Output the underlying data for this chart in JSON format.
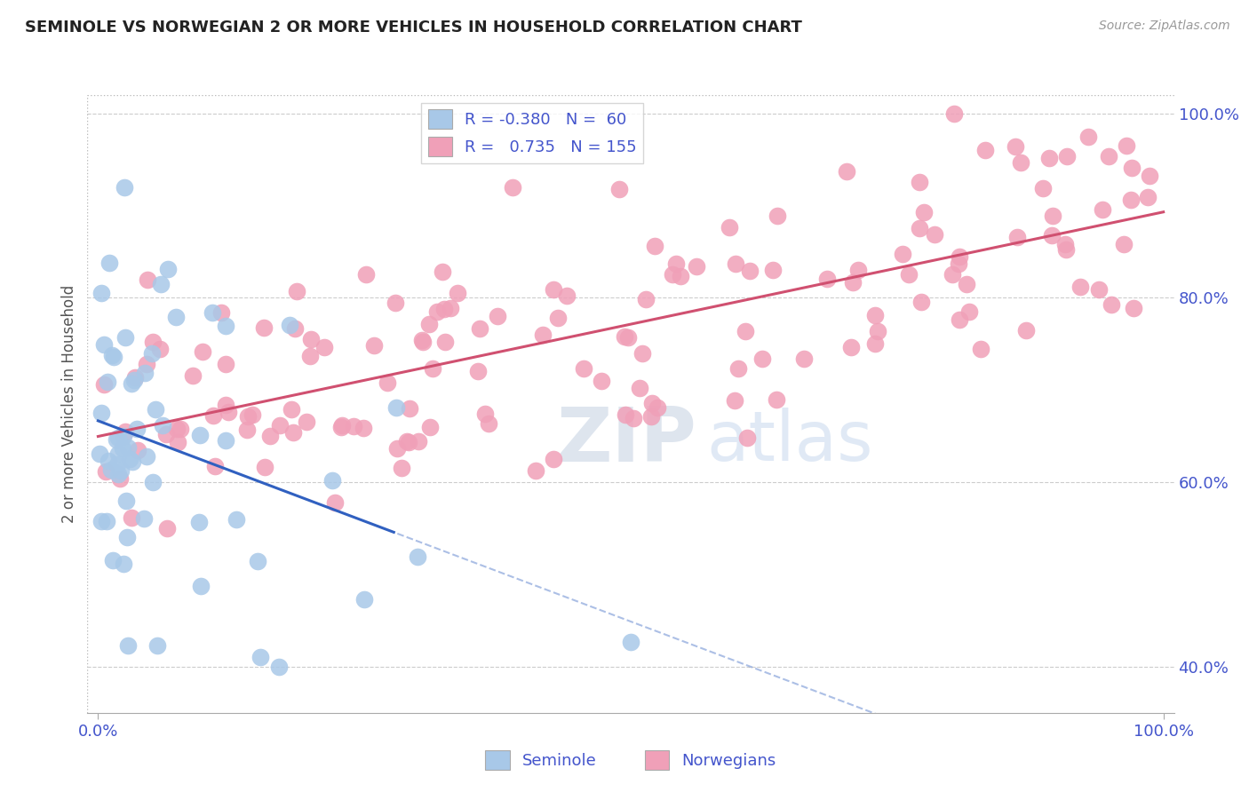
{
  "title": "SEMINOLE VS NORWEGIAN 2 OR MORE VEHICLES IN HOUSEHOLD CORRELATION CHART",
  "source": "Source: ZipAtlas.com",
  "ylabel": "2 or more Vehicles in Household",
  "R_seminole": -0.38,
  "N_seminole": 60,
  "R_norwegian": 0.735,
  "N_norwegian": 155,
  "seminole_dot_color": "#a8c8e8",
  "norwegian_dot_color": "#f0a0b8",
  "seminole_line_color": "#3060c0",
  "norwegian_line_color": "#d05070",
  "legend_labels": [
    "Seminole",
    "Norwegians"
  ],
  "watermark_zip": "ZIP",
  "watermark_atlas": "atlas",
  "watermark_color": "#c8d8ec",
  "label_color": "#4455cc",
  "title_color": "#222222",
  "grid_color": "#cccccc",
  "bg_color": "#ffffff",
  "xmin": 0.0,
  "xmax": 1.0,
  "ymin": 0.35,
  "ymax": 1.02,
  "ytick_vals": [
    0.4,
    0.6,
    0.8,
    1.0
  ],
  "ytick_labels": [
    "40.0%",
    "60.0%",
    "80.0%",
    "100.0%"
  ],
  "xtick_vals": [
    0.0,
    1.0
  ],
  "xtick_labels": [
    "0.0%",
    "100.0%"
  ]
}
